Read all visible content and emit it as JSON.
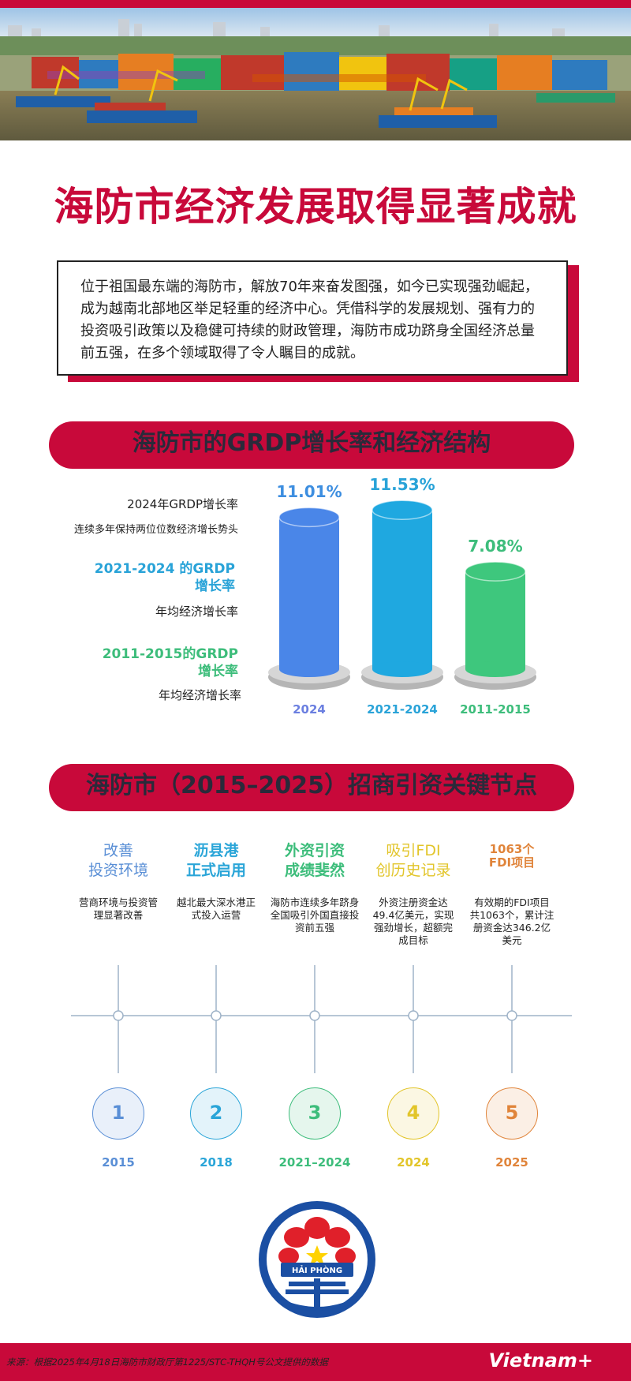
{
  "header": {
    "title": "海防市经济发展取得显著成就",
    "intro": "位于祖国最东端的海防市，解放70年来奋发图强，如今已实现强劲崛起，成为越南北部地区举足轻重的经济中心。凭借科学的发展规划、强有力的投资吸引政策以及稳健可持续的财政管理，海防市成功跻身全国经济总量前五强，在多个领域取得了令人瞩目的成就。"
  },
  "section1": {
    "title": "海防市的GRDP增长率和经济结构",
    "labels": [
      {
        "title": "2024年GRDP增长率",
        "sub": "连续多年保持两位位数经济增长势头",
        "color": "#222222"
      },
      {
        "title": "2021-2024 的GRDP增长率",
        "title_l1": "2021-2024 的GRDP",
        "title_l2": "增长率",
        "sub": "年均经济增长率",
        "color": "#29a3d8"
      },
      {
        "title": "2011-2015的GRDP增长率",
        "title_l1": "2011-2015的GRDP",
        "title_l2": "增长率",
        "sub": "年均经济增长率",
        "color": "#3dbd7b"
      }
    ],
    "chart_data": {
      "type": "bar",
      "categories": [
        "2024",
        "2021-2024",
        "2011-2015"
      ],
      "values": [
        11.01,
        11.53,
        7.08
      ],
      "value_labels": [
        "11.01%",
        "11.53%",
        "7.08%"
      ],
      "colors": [
        "#4a86e8",
        "#1fa8e0",
        "#3ec77d"
      ],
      "label_colors": [
        "#3d8ee0",
        "#29a3d8",
        "#3dbd7b"
      ],
      "year_colors": [
        "#6b7fe0",
        "#29a3d8",
        "#3dbd7b"
      ],
      "ylim": [
        0,
        12
      ]
    }
  },
  "section2": {
    "title": "海防市（2015–2025）招商引资关键节点",
    "milestones": [
      {
        "title_l1": "改善",
        "title_l2": "投资环境",
        "desc_l1": "营商环境与投资管",
        "desc_l2": "理显著改善",
        "desc_l3": "",
        "desc_l4": "",
        "num": "1",
        "year": "2015",
        "color": "#5a8fd6",
        "bold": false
      },
      {
        "title_l1": "沥县港",
        "title_l2": "正式启用",
        "desc_l1": "越北最大深水港正",
        "desc_l2": "式投入运营",
        "desc_l3": "",
        "desc_l4": "",
        "num": "2",
        "year": "2018",
        "color": "#2aa5d8",
        "bold": true
      },
      {
        "title_l1": "外资引资",
        "title_l2": "成绩斐然",
        "desc_l1": "海防市连续多年跻身",
        "desc_l2": "全国吸引外国直接投",
        "desc_l3": "资前五强",
        "desc_l4": "",
        "num": "3",
        "year": "2021–2024",
        "color": "#3dbd7b",
        "bold": true
      },
      {
        "title_l1": "吸引FDI",
        "title_l2": "创历史记录",
        "desc_l1": "外资注册资金达",
        "desc_l2": "49.4亿美元，实现",
        "desc_l3": "强劲增长，超额完",
        "desc_l4": "成目标",
        "num": "4",
        "year": "2024",
        "color": "#e2c52a",
        "bold": false
      },
      {
        "title_l1": "1063个",
        "title_l2": "FDI项目",
        "desc_l1": "有效期的FDI项目",
        "desc_l2": "共1063个，累计注",
        "desc_l3": "册资金达346.2亿",
        "desc_l4": "美元",
        "num": "5",
        "year": "2025",
        "color": "#e0843a",
        "bold": true
      }
    ]
  },
  "logo": {
    "text": "HẢI PHÒNG"
  },
  "footer": {
    "source": "来源：根据2025年4月18日海防市财政厅第1225/STC-THQH号公文提供的数据",
    "brand": "Vietnam+"
  },
  "colors": {
    "accent": "#c8093a"
  }
}
